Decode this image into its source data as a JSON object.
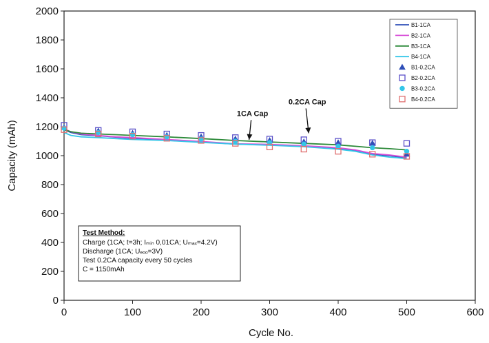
{
  "chart_data": {
    "type": "line",
    "title": "",
    "xlabel": "Cycle No.",
    "ylabel": "Capacity (mAh)",
    "xlim": [
      0,
      600
    ],
    "ylim": [
      0,
      2000
    ],
    "x_ticks": [
      0,
      100,
      200,
      300,
      400,
      500,
      600
    ],
    "y_ticks": [
      0,
      200,
      400,
      600,
      800,
      1000,
      1200,
      1400,
      1600,
      1800,
      2000
    ],
    "x_tick_labels": [
      "0",
      "100",
      "200",
      "300",
      "400",
      "500",
      "600"
    ],
    "y_tick_labels": [
      "0",
      "200",
      "400",
      "600",
      "800",
      "1000",
      "1200",
      "1400",
      "1600",
      "1800",
      "2000"
    ],
    "grid": false,
    "legend_position": "top-right",
    "series": [
      {
        "name": "B1-1CA",
        "kind": "line",
        "color": "#2f4fb8",
        "x": [
          0,
          10,
          25,
          50,
          75,
          100,
          150,
          200,
          250,
          300,
          350,
          400,
          425,
          450,
          475,
          500
        ],
        "y": [
          1180,
          1160,
          1145,
          1138,
          1128,
          1120,
          1110,
          1095,
          1080,
          1075,
          1065,
          1052,
          1035,
          1010,
          1000,
          985
        ]
      },
      {
        "name": "B2-1CA",
        "kind": "line",
        "color": "#d84fd8",
        "x": [
          0,
          10,
          25,
          50,
          75,
          100,
          150,
          200,
          250,
          300,
          350,
          400,
          425,
          450,
          475,
          500
        ],
        "y": [
          1185,
          1165,
          1150,
          1140,
          1130,
          1125,
          1112,
          1098,
          1082,
          1078,
          1068,
          1055,
          1040,
          1015,
          1005,
          990
        ]
      },
      {
        "name": "B3-1CA",
        "kind": "line",
        "color": "#2d8a3a",
        "x": [
          0,
          10,
          25,
          50,
          75,
          100,
          150,
          200,
          250,
          300,
          350,
          400,
          425,
          450,
          475,
          500
        ],
        "y": [
          1180,
          1165,
          1155,
          1150,
          1145,
          1140,
          1130,
          1118,
          1105,
          1095,
          1085,
          1075,
          1065,
          1055,
          1048,
          1040
        ]
      },
      {
        "name": "B4-1CA",
        "kind": "line",
        "color": "#34c6e8",
        "x": [
          0,
          10,
          25,
          50,
          75,
          100,
          150,
          200,
          250,
          300,
          350,
          400,
          425,
          450,
          475,
          500
        ],
        "y": [
          1160,
          1140,
          1130,
          1125,
          1118,
          1112,
          1105,
          1092,
          1080,
          1072,
          1062,
          1045,
          1030,
          1005,
          990,
          980
        ]
      },
      {
        "name": "B1-0.2CA",
        "kind": "marker",
        "marker": "triangle",
        "color": "#2f4fb8",
        "x": [
          0,
          50,
          100,
          150,
          200,
          250,
          300,
          350,
          400,
          450,
          500
        ],
        "y": [
          1195,
          1170,
          1155,
          1140,
          1130,
          1115,
          1105,
          1095,
          1090,
          1085,
          1010
        ]
      },
      {
        "name": "B2-0.2CA",
        "kind": "marker",
        "marker": "square",
        "color": "#5a4fc8",
        "x": [
          0,
          50,
          100,
          150,
          200,
          250,
          300,
          350,
          400,
          450,
          500
        ],
        "y": [
          1210,
          1175,
          1165,
          1150,
          1140,
          1125,
          1115,
          1110,
          1100,
          1090,
          1085
        ]
      },
      {
        "name": "B3-0.2CA",
        "kind": "marker",
        "marker": "circle",
        "color": "#34c6e8",
        "x": [
          0,
          50,
          100,
          150,
          200,
          250,
          300,
          350,
          400,
          450,
          500
        ],
        "y": [
          1190,
          1160,
          1145,
          1130,
          1115,
          1100,
          1090,
          1080,
          1065,
          1055,
          1030
        ]
      },
      {
        "name": "B4-0.2CA",
        "kind": "marker",
        "marker": "square",
        "color": "#e07070",
        "x": [
          0,
          50,
          100,
          150,
          200,
          250,
          300,
          350,
          400,
          450,
          500
        ],
        "y": [
          1180,
          1150,
          1135,
          1120,
          1105,
          1085,
          1060,
          1045,
          1030,
          1010,
          995
        ]
      }
    ],
    "annotations": [
      {
        "text": "1CA Cap",
        "x": 275,
        "y": 1275,
        "arrow_to": [
          270,
          1110
        ]
      },
      {
        "text": "0.2CA Cap",
        "x": 355,
        "y": 1355,
        "arrow_to": [
          357,
          1155
        ]
      }
    ],
    "text_box": {
      "title": "Test Method:",
      "lines": [
        "Charge (1CA; t=3h; Iₘᵢₙ 0,01CA; Uₘₐₓ=4.2V)",
        "Discharge (1CA; Uₑₒₒ=3V)",
        "Test 0.2CA capacity every 50 cycles",
        "C = 1150mAh"
      ]
    }
  }
}
